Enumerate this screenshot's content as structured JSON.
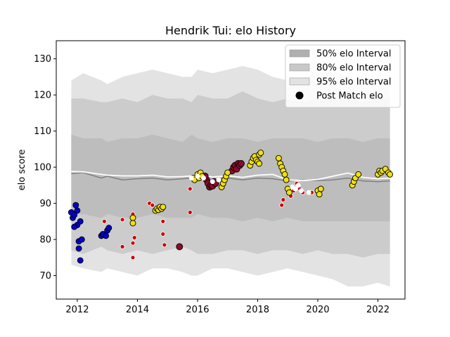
{
  "chart_data": {
    "type": "scatter",
    "title": "Hendrik Tui: elo History",
    "xlabel": "",
    "ylabel": "elo score",
    "xlim": [
      2011.3,
      2022.9
    ],
    "ylim": [
      63.5,
      135
    ],
    "xticks": [
      2012,
      2014,
      2016,
      2018,
      2020,
      2022
    ],
    "yticks": [
      70,
      80,
      90,
      100,
      110,
      120,
      130
    ],
    "grid": false,
    "legend_position": "top-right",
    "legend": [
      {
        "label": "50% elo Interval",
        "kind": "band",
        "color": "#b0b0b0"
      },
      {
        "label": "80% elo Interval",
        "kind": "band",
        "color": "#c8c8c8"
      },
      {
        "label": "95% elo Interval",
        "kind": "band",
        "color": "#e2e2e2"
      },
      {
        "label": "Post Match elo",
        "kind": "marker",
        "color": "#000000"
      }
    ],
    "colors": {
      "band95": "#e3e3e3",
      "band80": "#cccccc",
      "band50": "#bdbdbd",
      "median_line": "#808080",
      "white_line": "#ffffff"
    },
    "bands": {
      "x": [
        2011.8,
        2012.2,
        2012.8,
        2013.0,
        2013.5,
        2014.0,
        2014.5,
        2015.0,
        2015.5,
        2015.8,
        2016.0,
        2016.5,
        2017.0,
        2017.5,
        2018.0,
        2018.5,
        2019.0,
        2019.5,
        2020.0,
        2020.5,
        2021.0,
        2021.5,
        2022.0,
        2022.4
      ],
      "p95_hi": [
        124,
        126,
        124,
        123,
        125,
        126,
        127,
        126,
        125,
        125,
        127,
        126,
        127,
        128,
        127,
        125,
        124,
        125,
        126,
        127,
        125,
        124,
        125,
        124
      ],
      "p95_lo": [
        73,
        72,
        71,
        72,
        71,
        70,
        72,
        72,
        71,
        70,
        70,
        72,
        72,
        71,
        70,
        71,
        72,
        71,
        70,
        69,
        67,
        67,
        68,
        67
      ],
      "p80_hi": [
        119,
        119,
        118,
        118,
        119,
        118,
        120,
        119,
        119,
        118,
        120,
        119,
        119,
        121,
        119,
        118,
        119,
        118,
        119,
        119,
        119,
        118,
        119,
        119
      ],
      "p80_lo": [
        77,
        76,
        78,
        77,
        76,
        77,
        76,
        77,
        78,
        77,
        76,
        76,
        77,
        77,
        76,
        77,
        77,
        76,
        77,
        76,
        76,
        75,
        76,
        76
      ],
      "p50_hi": [
        109,
        108,
        108,
        107,
        108,
        108,
        109,
        108,
        107,
        109,
        108,
        107,
        108,
        108,
        107,
        108,
        108,
        108,
        107,
        108,
        108,
        107,
        108,
        108
      ],
      "p50_lo": [
        87,
        87,
        86,
        87,
        86,
        86,
        87,
        86,
        86,
        86,
        87,
        86,
        86,
        85,
        86,
        85,
        86,
        85,
        85,
        85,
        85,
        85,
        85,
        85
      ],
      "median": [
        98.2,
        98.5,
        97.0,
        97.5,
        96.5,
        96.8,
        97.0,
        96.5,
        96.8,
        97.0,
        97.0,
        96.5,
        97.0,
        96.5,
        97.0,
        96.8,
        96.2,
        96.5,
        96.3,
        96.5,
        97.0,
        96.2,
        96.0,
        96.2
      ],
      "white": [
        98.8,
        98.7,
        98.0,
        97.8,
        97.6,
        97.6,
        97.8,
        97.3,
        97.4,
        97.6,
        98.0,
        97.3,
        97.6,
        97.2,
        97.8,
        98.0,
        96.5,
        96.3,
        96.6,
        97.5,
        98.4,
        97.2,
        96.8,
        97.0
      ]
    },
    "series": [
      {
        "color": "#0000cd",
        "size": 7,
        "points": [
          [
            2011.8,
            87.5
          ],
          [
            2011.85,
            86.0
          ],
          [
            2011.9,
            86.8
          ],
          [
            2011.95,
            89.5
          ],
          [
            2012.0,
            88.0
          ],
          [
            2012.0,
            84.0
          ],
          [
            2012.05,
            79.5
          ],
          [
            2012.05,
            77.5
          ],
          [
            2012.1,
            74.2
          ],
          [
            2012.1,
            85.0
          ],
          [
            2012.15,
            80.0
          ],
          [
            2011.9,
            83.5
          ],
          [
            2012.8,
            81.0
          ],
          [
            2012.85,
            81.5
          ],
          [
            2012.95,
            81.0
          ],
          [
            2013.0,
            82.5
          ],
          [
            2013.05,
            83.2
          ]
        ]
      },
      {
        "color": "#cc0000",
        "size": 5,
        "points": [
          [
            2012.9,
            85.0
          ],
          [
            2013.5,
            85.5
          ],
          [
            2013.5,
            78.0
          ],
          [
            2013.85,
            87.0
          ],
          [
            2013.85,
            79.0
          ],
          [
            2013.85,
            75.0
          ],
          [
            2013.9,
            80.5
          ],
          [
            2014.4,
            90.0
          ],
          [
            2014.5,
            89.5
          ],
          [
            2014.85,
            85.0
          ],
          [
            2014.85,
            81.5
          ],
          [
            2014.9,
            78.5
          ],
          [
            2015.75,
            94.0
          ],
          [
            2015.75,
            87.5
          ],
          [
            2018.8,
            89.5
          ],
          [
            2018.85,
            91.0
          ],
          [
            2019.1,
            92.0
          ],
          [
            2019.2,
            93.5
          ],
          [
            2019.3,
            95.5
          ],
          [
            2019.4,
            94.0
          ],
          [
            2019.5,
            93.0
          ],
          [
            2019.8,
            93.0
          ]
        ]
      },
      {
        "color": "#8b0a2a",
        "size": 8,
        "points": [
          [
            2015.4,
            78.0
          ],
          [
            2016.3,
            96.5
          ],
          [
            2016.35,
            95.5
          ],
          [
            2016.4,
            94.5
          ],
          [
            2016.45,
            95.0
          ],
          [
            2016.5,
            94.8
          ],
          [
            2016.55,
            96.0
          ],
          [
            2016.6,
            95.5
          ],
          [
            2016.25,
            97.5
          ],
          [
            2017.15,
            99.0
          ],
          [
            2017.2,
            100.0
          ],
          [
            2017.25,
            100.5
          ],
          [
            2017.3,
            99.5
          ],
          [
            2017.35,
            101.0
          ],
          [
            2017.4,
            100.5
          ],
          [
            2017.45,
            101.0
          ]
        ]
      },
      {
        "color": "#f0e010",
        "size": 7,
        "points": [
          [
            2013.85,
            86.0
          ],
          [
            2013.85,
            84.5
          ],
          [
            2014.6,
            88.0
          ],
          [
            2014.65,
            88.5
          ],
          [
            2014.7,
            88.2
          ],
          [
            2014.75,
            89.0
          ],
          [
            2014.8,
            88.5
          ],
          [
            2014.85,
            89.0
          ],
          [
            2015.85,
            97.0
          ],
          [
            2015.9,
            96.5
          ],
          [
            2016.0,
            98.0
          ],
          [
            2016.05,
            97.0
          ],
          [
            2016.1,
            98.5
          ],
          [
            2016.15,
            97.5
          ],
          [
            2016.8,
            94.5
          ],
          [
            2016.85,
            95.5
          ],
          [
            2016.9,
            96.5
          ],
          [
            2016.95,
            97.5
          ],
          [
            2017.0,
            98.5
          ],
          [
            2017.75,
            100.5
          ],
          [
            2017.8,
            101.5
          ],
          [
            2017.85,
            102.5
          ],
          [
            2017.9,
            103.0
          ],
          [
            2017.95,
            102.0
          ],
          [
            2018.0,
            101.5
          ],
          [
            2018.05,
            103.5
          ],
          [
            2018.1,
            104.0
          ],
          [
            2018.05,
            101.0
          ],
          [
            2018.7,
            102.5
          ],
          [
            2018.75,
            101.0
          ],
          [
            2018.8,
            100.0
          ],
          [
            2018.85,
            99.0
          ],
          [
            2018.9,
            98.0
          ],
          [
            2018.95,
            96.5
          ],
          [
            2019.0,
            94.0
          ],
          [
            2019.05,
            93.0
          ],
          [
            2020.0,
            93.5
          ],
          [
            2020.05,
            92.5
          ],
          [
            2020.1,
            94.0
          ],
          [
            2021.15,
            95.0
          ],
          [
            2021.2,
            96.0
          ],
          [
            2021.25,
            97.0
          ],
          [
            2021.35,
            98.0
          ],
          [
            2022.0,
            98.0
          ],
          [
            2022.05,
            99.0
          ],
          [
            2022.1,
            98.5
          ],
          [
            2022.15,
            99.0
          ],
          [
            2022.25,
            99.5
          ],
          [
            2022.35,
            98.5
          ],
          [
            2022.4,
            98.0
          ]
        ]
      },
      {
        "color": "#ffffff",
        "size": 5,
        "points": [
          [
            2015.8,
            97.0
          ],
          [
            2016.0,
            97.5
          ],
          [
            2016.2,
            97.0
          ],
          [
            2016.5,
            96.0
          ],
          [
            2016.7,
            96.5
          ],
          [
            2019.15,
            94.5
          ],
          [
            2019.25,
            94.0
          ],
          [
            2019.35,
            95.0
          ],
          [
            2019.45,
            93.5
          ],
          [
            2019.7,
            93.0
          ]
        ]
      }
    ]
  }
}
